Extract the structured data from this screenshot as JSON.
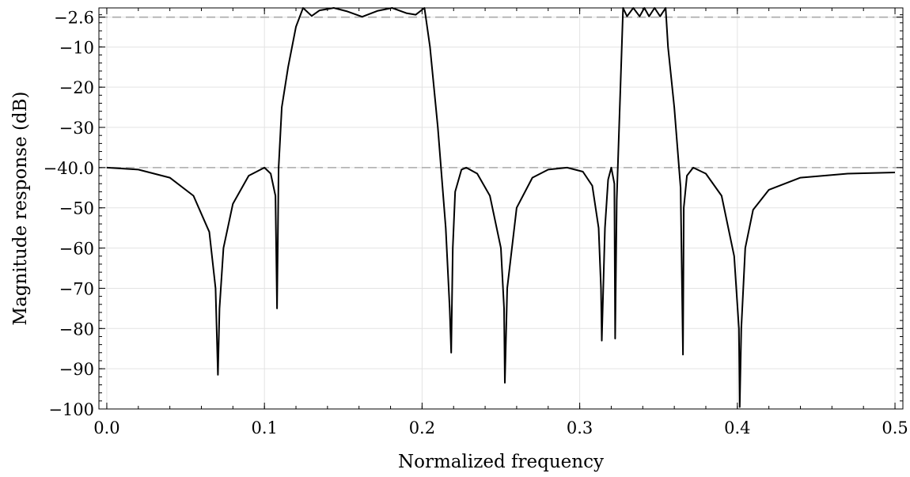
{
  "chart_data": {
    "type": "line",
    "title": "",
    "xlabel": "Normalized frequency",
    "ylabel": "Magnitude response (dB)",
    "xlim": [
      -0.005,
      0.505
    ],
    "ylim": [
      -100,
      -0.3
    ],
    "xticks": [
      0.0,
      0.1,
      0.2,
      0.3,
      0.4,
      0.5
    ],
    "xtick_labels": [
      "0.0",
      "0.1",
      "0.2",
      "0.3",
      "0.4",
      "0.5"
    ],
    "yticks": [
      -2.6,
      -10,
      -20,
      -30,
      -40,
      -50,
      -60,
      -70,
      -80,
      -90,
      -100
    ],
    "ytick_labels": [
      "−2.6",
      "−10",
      "−20",
      "−30",
      "−40.0",
      "−50",
      "−60",
      "−70",
      "−80",
      "−90",
      "−100"
    ],
    "grid": true,
    "reference_lines": [
      {
        "y": -2.6,
        "style": "dashed",
        "color": "#aaaaaa"
      },
      {
        "y": -40.0,
        "style": "dashed",
        "color": "#aaaaaa"
      }
    ],
    "series": [
      {
        "color": "#000000",
        "x": [
          0.0,
          0.02,
          0.04,
          0.055,
          0.065,
          0.069,
          0.0705,
          0.0715,
          0.074,
          0.08,
          0.09,
          0.1,
          0.104,
          0.107,
          0.108,
          0.1085,
          0.109,
          0.111,
          0.115,
          0.12,
          0.1245,
          0.13,
          0.135,
          0.144,
          0.152,
          0.162,
          0.172,
          0.181,
          0.19,
          0.196,
          0.2015,
          0.205,
          0.21,
          0.215,
          0.2175,
          0.2185,
          0.2195,
          0.221,
          0.225,
          0.228,
          0.235,
          0.243,
          0.25,
          0.252,
          0.2525,
          0.254,
          0.26,
          0.27,
          0.28,
          0.292,
          0.302,
          0.308,
          0.312,
          0.3135,
          0.314,
          0.316,
          0.318,
          0.32,
          0.322,
          0.3225,
          0.3235,
          0.325,
          0.3275,
          0.33,
          0.334,
          0.338,
          0.341,
          0.344,
          0.3475,
          0.351,
          0.3545,
          0.356,
          0.36,
          0.364,
          0.3655,
          0.366,
          0.368,
          0.372,
          0.38,
          0.39,
          0.398,
          0.401,
          0.4015,
          0.4025,
          0.405,
          0.41,
          0.42,
          0.44,
          0.47,
          0.5
        ],
        "y": [
          -40.0,
          -40.5,
          -42.5,
          -47.0,
          -56.0,
          -70.0,
          -91.5,
          -75.0,
          -60.0,
          -49.0,
          -42.0,
          -40.0,
          -41.5,
          -47.0,
          -75.0,
          -58.0,
          -40.0,
          -25.0,
          -15.0,
          -5.0,
          -0.3,
          -2.3,
          -0.9,
          -0.3,
          -1.1,
          -2.5,
          -1.0,
          -0.3,
          -1.6,
          -2.0,
          -0.3,
          -10.0,
          -30.0,
          -55.0,
          -75.0,
          -86.0,
          -60.0,
          -46.0,
          -40.5,
          -40.0,
          -41.5,
          -47.0,
          -60.0,
          -75.0,
          -93.5,
          -70.0,
          -50.0,
          -42.5,
          -40.5,
          -40.0,
          -41.0,
          -44.5,
          -55.0,
          -70.0,
          -83.0,
          -55.0,
          -43.0,
          -40.0,
          -44.0,
          -82.5,
          -48.0,
          -30.0,
          -0.3,
          -2.4,
          -0.3,
          -2.4,
          -0.3,
          -2.4,
          -0.3,
          -2.4,
          -0.3,
          -10.0,
          -25.0,
          -45.0,
          -86.5,
          -50.0,
          -42.0,
          -40.0,
          -41.5,
          -47.0,
          -62.0,
          -80.0,
          -99.5,
          -80.0,
          -60.0,
          -50.5,
          -45.5,
          -42.5,
          -41.5,
          -41.2
        ]
      }
    ]
  }
}
